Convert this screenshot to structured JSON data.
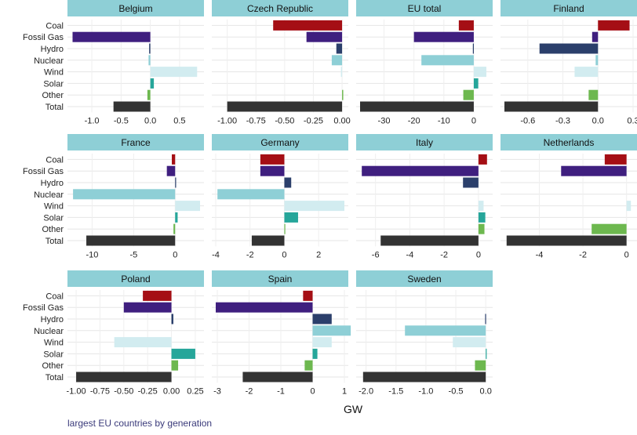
{
  "chart_data": {
    "type": "bar",
    "orientation": "horizontal",
    "xlabel": "GW",
    "categories": [
      "Coal",
      "Fossil Gas",
      "Hydro",
      "Nuclear",
      "Wind",
      "Solar",
      "Other",
      "Total"
    ],
    "colors": {
      "Coal": "#a50f15",
      "Fossil Gas": "#3f1f7f",
      "Hydro": "#2b3f6b",
      "Nuclear": "#8ecfd6",
      "Wind": "#d2ecf0",
      "Solar": "#26a69a",
      "Other": "#6db84f",
      "Total": "#333333",
      "strip": "#8ecfd6",
      "grid": "#e6e6e6"
    },
    "panels": [
      {
        "name": "Belgium",
        "xlim": [
          -1.35,
          0.85
        ],
        "ticks": [
          -1.0,
          -0.5,
          0.0,
          0.5
        ],
        "tick_labels": [
          "-1.0",
          "-0.5",
          "0.0",
          "0.5"
        ],
        "values": {
          "Coal": 0,
          "Fossil Gas": -1.33,
          "Hydro": -0.02,
          "Nuclear": -0.03,
          "Wind": 0.8,
          "Solar": 0.06,
          "Other": -0.05,
          "Total": -0.63
        }
      },
      {
        "name": "Czech Republic",
        "xlim": [
          -1.1,
          0.02
        ],
        "ticks": [
          -1.0,
          -0.75,
          -0.5,
          -0.25,
          0.0
        ],
        "tick_labels": [
          "-1.00",
          "-0.75",
          "-0.50",
          "-0.25",
          "0.00"
        ],
        "values": {
          "Coal": -0.6,
          "Fossil Gas": -0.31,
          "Hydro": -0.05,
          "Nuclear": -0.09,
          "Wind": -0.01,
          "Solar": 0.0,
          "Other": 0.01,
          "Total": -1.0
        }
      },
      {
        "name": "EU total",
        "xlim": [
          -38,
          5
        ],
        "ticks": [
          -30,
          -20,
          -10,
          0
        ],
        "tick_labels": [
          "-30",
          "-20",
          "-10",
          "0"
        ],
        "values": {
          "Coal": -5,
          "Fossil Gas": -20,
          "Hydro": -0.3,
          "Nuclear": -17.5,
          "Wind": 4.2,
          "Solar": 1.5,
          "Other": -3.5,
          "Total": -38
        }
      },
      {
        "name": "Finland",
        "xlim": [
          -0.8,
          0.3
        ],
        "ticks": [
          -0.6,
          -0.3,
          0.0,
          0.3
        ],
        "tick_labels": [
          "-0.6",
          "-0.3",
          "0.0",
          "0.3"
        ],
        "values": {
          "Coal": 0.27,
          "Fossil Gas": -0.05,
          "Hydro": -0.5,
          "Nuclear": -0.02,
          "Wind": -0.2,
          "Solar": 0,
          "Other": -0.08,
          "Total": -0.8
        }
      },
      {
        "name": "France",
        "xlim": [
          -12.5,
          3.0
        ],
        "ticks": [
          -10,
          -5,
          0
        ],
        "tick_labels": [
          "-10",
          "-5",
          "0"
        ],
        "values": {
          "Coal": -0.4,
          "Fossil Gas": -1.0,
          "Hydro": 0.05,
          "Nuclear": -12.3,
          "Wind": 3.0,
          "Solar": 0.3,
          "Other": -0.2,
          "Total": -10.7
        }
      },
      {
        "name": "Germany",
        "xlim": [
          -4.0,
          3.5
        ],
        "ticks": [
          -4,
          -2,
          0,
          2
        ],
        "tick_labels": [
          "-4",
          "-2",
          "0",
          "2"
        ],
        "values": {
          "Coal": -1.4,
          "Fossil Gas": -1.4,
          "Hydro": 0.4,
          "Nuclear": -3.9,
          "Wind": 3.5,
          "Solar": 0.8,
          "Other": 0.05,
          "Total": -1.9
        }
      },
      {
        "name": "Italy",
        "xlim": [
          -6.9,
          0.6
        ],
        "ticks": [
          -6,
          -4,
          -2,
          0
        ],
        "tick_labels": [
          "-6",
          "-4",
          "-2",
          "0"
        ],
        "values": {
          "Coal": 0.5,
          "Fossil Gas": -6.8,
          "Hydro": -0.9,
          "Nuclear": 0,
          "Wind": 0.3,
          "Solar": 0.4,
          "Other": 0.35,
          "Total": -5.7
        }
      },
      {
        "name": "Netherlands",
        "xlim": [
          -5.6,
          0.3
        ],
        "ticks": [
          -4,
          -2,
          0
        ],
        "tick_labels": [
          "-4",
          "-2",
          "0"
        ],
        "values": {
          "Coal": -1.0,
          "Fossil Gas": -3.0,
          "Hydro": 0,
          "Nuclear": 0,
          "Wind": 0.2,
          "Solar": 0,
          "Other": -1.6,
          "Total": -5.5
        }
      },
      {
        "name": "Poland",
        "xlim": [
          -1.05,
          0.3
        ],
        "ticks": [
          -1.0,
          -0.75,
          -0.5,
          -0.25,
          0.0,
          0.25
        ],
        "tick_labels": [
          "-1.00",
          "-0.75",
          "-0.50",
          "-0.25",
          "0.00",
          "0.25"
        ],
        "values": {
          "Coal": -0.3,
          "Fossil Gas": -0.5,
          "Hydro": 0.02,
          "Nuclear": 0,
          "Wind": -0.6,
          "Solar": 0.25,
          "Other": 0.07,
          "Total": -1.0
        }
      },
      {
        "name": "Spain",
        "xlim": [
          -3.05,
          1.0
        ],
        "ticks": [
          -3,
          -2,
          -1,
          0,
          1
        ],
        "tick_labels": [
          "-3",
          "-2",
          "-1",
          "0",
          "1"
        ],
        "values": {
          "Coal": -0.3,
          "Fossil Gas": -3.05,
          "Hydro": 0.6,
          "Nuclear": 1.2,
          "Wind": 0.6,
          "Solar": 0.15,
          "Other": -0.25,
          "Total": -2.2
        }
      },
      {
        "name": "Sweden",
        "xlim": [
          -2.1,
          0.05
        ],
        "ticks": [
          -2.0,
          -1.5,
          -1.0,
          -0.5,
          0.0
        ],
        "tick_labels": [
          "-2.0",
          "-1.5",
          "-1.0",
          "-0.5",
          "0.0"
        ],
        "values": {
          "Coal": 0,
          "Fossil Gas": 0,
          "Hydro": -0.01,
          "Nuclear": -1.35,
          "Wind": -0.55,
          "Solar": 0.01,
          "Other": -0.18,
          "Total": -2.05
        }
      }
    ]
  },
  "caption": "largest EU countries by generation"
}
